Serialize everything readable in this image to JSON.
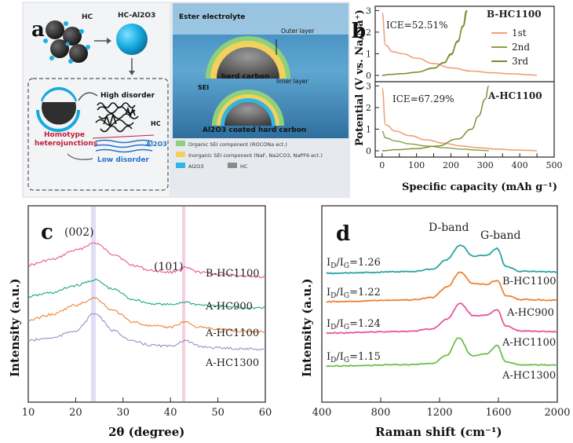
{
  "panel_a": {
    "label": "a",
    "hc": "HC",
    "hc_al2o3": "HC-Al2O3",
    "high_disorder": "High disorder",
    "hc_small": "HC",
    "homotype": "Homotype",
    "heterojunctions": "heterojunctions",
    "al2o3": "Al2O3",
    "low_disorder": "Low disorder",
    "ester": "Ester electrolyte",
    "outer": "Outer layer",
    "hard_carbon": "hard carbon",
    "inner": "Inner layer",
    "sei": "SEI",
    "al_coated": "Al2O3 coated hard carbon",
    "legend": [
      {
        "color": "#8fd07c",
        "text": "Organic SEI component (ROCONa ect.)"
      },
      {
        "color": "#f2d15c",
        "text": "Inorganic SEI component (NaF, Na2CO3, NaPF6 ect.)"
      },
      {
        "color": "#2fb6e5",
        "text": "Al2O3"
      },
      {
        "color": "#8a8a8a",
        "text": "HC"
      }
    ]
  },
  "panel_b": {
    "label": "b",
    "ylabel": "Potential (V vs. Na/Na⁺)",
    "xlabel": "Specific capacity (mAh g⁻¹)",
    "top_title": "B-HC1100",
    "top_ice": "ICE=52.51%",
    "bottom_title": "A-HC1100",
    "bottom_ice": "ICE=67.29%",
    "legend": [
      "1st",
      "2nd",
      "3rd"
    ],
    "yticks": [
      "0",
      "1",
      "2",
      "3"
    ],
    "xticks": [
      "0",
      "50",
      "100",
      "150",
      "200",
      "250",
      "300",
      "350",
      "400",
      "450",
      "500"
    ]
  },
  "panel_c": {
    "label": "c",
    "peak1": "(002)",
    "peak2": "(101)",
    "ylabel": "Intensity (a.u.)",
    "xlabel": "2θ (degree)",
    "xticks": [
      "10",
      "20",
      "30",
      "40",
      "50",
      "60"
    ],
    "series": [
      "B-HC1100",
      "A-HC900",
      "A-HC1100",
      "A-HC1300"
    ]
  },
  "panel_d": {
    "label": "d",
    "dband": "D-band",
    "gband": "G-band",
    "ylabel": "Intensity (a.u.)",
    "xlabel": "Raman shift (cm⁻¹)",
    "xticks": [
      "400",
      "800",
      "1200",
      "1600",
      "2000"
    ],
    "ratios": [
      "ID/IG=1.26",
      "ID/IG=1.22",
      "ID/IG=1.24",
      "ID/IG=1.15"
    ],
    "series": [
      "B-HC1100",
      "A-HC900",
      "A-HC1100",
      "A-HC1300"
    ]
  },
  "colors": {
    "c_series": [
      "#e8559a",
      "#1aa58a",
      "#ee8232",
      "#9b8fc7"
    ],
    "d_series": [
      "#2aa3a3",
      "#ee8232",
      "#e8559a",
      "#6fbf4a"
    ],
    "b_series": [
      "#f0a078",
      "#8aa040",
      "#7d8a2a"
    ]
  },
  "chart_data": [
    {
      "type": "line",
      "title": "B-HC1100",
      "xlabel": "Specific capacity (mAh g⁻¹)",
      "ylabel": "Potential (V vs. Na/Na⁺)",
      "xlim": [
        0,
        500
      ],
      "ylim": [
        0,
        3
      ],
      "annotation": "ICE=52.51%",
      "series": [
        {
          "name": "1st",
          "x": [
            0,
            10,
            30,
            60,
            100,
            150,
            200,
            260,
            320,
            380,
            430,
            450
          ],
          "y": [
            2.9,
            1.4,
            1.1,
            1.0,
            0.8,
            0.55,
            0.35,
            0.2,
            0.12,
            0.07,
            0.03,
            0.0
          ]
        },
        {
          "name": "2nd",
          "x": [
            0,
            20,
            60,
            100,
            150,
            180,
            200,
            220,
            235,
            245
          ],
          "y": [
            0.0,
            0.04,
            0.08,
            0.15,
            0.35,
            0.6,
            1.0,
            1.6,
            2.3,
            3.0
          ]
        },
        {
          "name": "3rd",
          "x": [
            0,
            20,
            60,
            100,
            150,
            180,
            200,
            220,
            235,
            248
          ],
          "y": [
            0.0,
            0.04,
            0.08,
            0.15,
            0.33,
            0.58,
            0.95,
            1.55,
            2.25,
            3.0
          ]
        }
      ]
    },
    {
      "type": "line",
      "title": "A-HC1100",
      "xlabel": "Specific capacity (mAh g⁻¹)",
      "ylabel": "Potential (V vs. Na/Na⁺)",
      "xlim": [
        0,
        500
      ],
      "ylim": [
        0,
        3
      ],
      "annotation": "ICE=67.29%",
      "series": [
        {
          "name": "1st",
          "x": [
            0,
            10,
            40,
            80,
            130,
            180,
            230,
            280,
            330,
            380,
            430,
            450
          ],
          "y": [
            2.9,
            1.2,
            0.9,
            0.7,
            0.5,
            0.35,
            0.22,
            0.14,
            0.08,
            0.04,
            0.02,
            0.0
          ]
        },
        {
          "name": "2nd",
          "x": [
            0,
            10,
            40,
            80,
            130,
            180,
            230,
            280,
            310
          ],
          "y": [
            0.9,
            0.6,
            0.45,
            0.32,
            0.22,
            0.14,
            0.08,
            0.03,
            0.0
          ]
        },
        {
          "name": "3rd",
          "x": [
            0,
            40,
            100,
            160,
            220,
            260,
            280,
            300,
            310
          ],
          "y": [
            0.0,
            0.05,
            0.1,
            0.22,
            0.55,
            1.0,
            1.6,
            2.4,
            3.0
          ]
        }
      ]
    },
    {
      "type": "line",
      "xlabel": "2θ (degree)",
      "ylabel": "Intensity (a.u.)",
      "xlim": [
        10,
        60
      ],
      "series": [
        {
          "name": "B-HC1100",
          "x": [
            10,
            15,
            20,
            24,
            28,
            32,
            36,
            40,
            43,
            46,
            50,
            55,
            60
          ],
          "y": [
            0.35,
            0.45,
            0.62,
            0.75,
            0.55,
            0.35,
            0.25,
            0.22,
            0.3,
            0.22,
            0.18,
            0.15,
            0.14
          ]
        },
        {
          "name": "A-HC900",
          "x": [
            10,
            15,
            20,
            24,
            28,
            32,
            36,
            40,
            43,
            46,
            50,
            55,
            60
          ],
          "y": [
            0.35,
            0.42,
            0.55,
            0.65,
            0.48,
            0.3,
            0.22,
            0.2,
            0.25,
            0.2,
            0.17,
            0.15,
            0.14
          ]
        },
        {
          "name": "A-HC1100",
          "x": [
            10,
            15,
            20,
            24,
            28,
            32,
            36,
            40,
            43,
            46,
            50,
            55,
            60
          ],
          "y": [
            0.35,
            0.45,
            0.62,
            0.75,
            0.52,
            0.32,
            0.24,
            0.22,
            0.32,
            0.22,
            0.18,
            0.15,
            0.14
          ]
        },
        {
          "name": "A-HC1300",
          "x": [
            10,
            15,
            20,
            24,
            28,
            32,
            36,
            40,
            43,
            46,
            50,
            55,
            60
          ],
          "y": [
            0.3,
            0.35,
            0.5,
            0.85,
            0.5,
            0.28,
            0.2,
            0.18,
            0.3,
            0.18,
            0.15,
            0.13,
            0.12
          ]
        }
      ]
    },
    {
      "type": "line",
      "xlabel": "Raman shift (cm⁻¹)",
      "ylabel": "Intensity (a.u.)",
      "xlim": [
        400,
        2000
      ],
      "series": [
        {
          "name": "B-HC1100",
          "x": [
            1000,
            1150,
            1250,
            1340,
            1430,
            1520,
            1590,
            1650,
            1750,
            2000
          ],
          "y": [
            0.05,
            0.12,
            0.4,
            0.82,
            0.5,
            0.52,
            0.72,
            0.2,
            0.06,
            0.04
          ]
        },
        {
          "name": "A-HC900",
          "x": [
            1000,
            1150,
            1250,
            1340,
            1430,
            1520,
            1590,
            1650,
            1750,
            2000
          ],
          "y": [
            0.05,
            0.12,
            0.42,
            0.85,
            0.52,
            0.5,
            0.62,
            0.18,
            0.06,
            0.04
          ]
        },
        {
          "name": "A-HC1100",
          "x": [
            1000,
            1150,
            1250,
            1340,
            1430,
            1520,
            1590,
            1650,
            1750,
            2000
          ],
          "y": [
            0.05,
            0.12,
            0.4,
            0.85,
            0.5,
            0.52,
            0.68,
            0.2,
            0.06,
            0.04
          ]
        },
        {
          "name": "A-HC1300",
          "x": [
            1000,
            1150,
            1250,
            1330,
            1420,
            1520,
            1590,
            1650,
            1750,
            2000
          ],
          "y": [
            0.04,
            0.08,
            0.3,
            0.82,
            0.3,
            0.35,
            0.6,
            0.12,
            0.04,
            0.03
          ]
        }
      ]
    }
  ]
}
